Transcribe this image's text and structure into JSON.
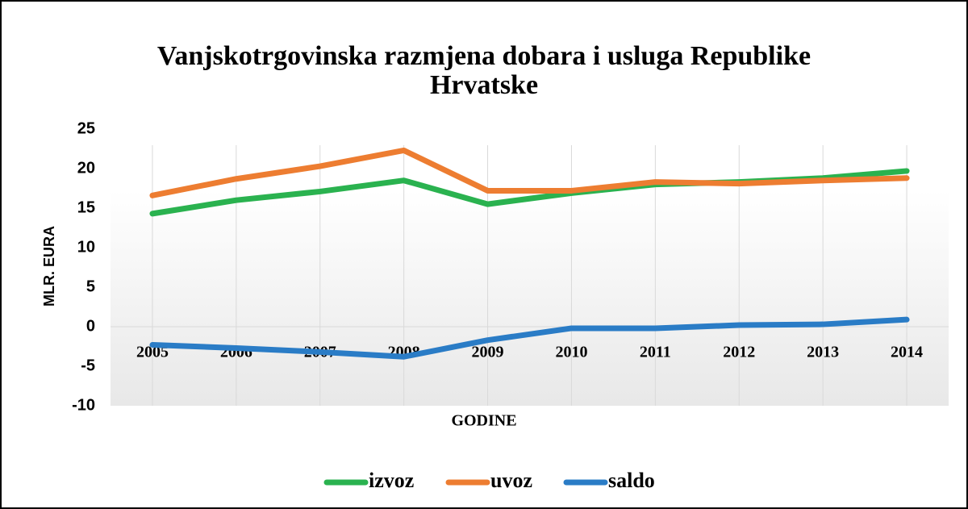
{
  "chart_data": {
    "type": "line",
    "title": [
      "Vanjskotrgovinska razmjena dobara i usluga Republike",
      "Hrvatske"
    ],
    "y_label": "MLR. EURA",
    "x_label": "GODINE",
    "categories": [
      "2005",
      "2006",
      "2007",
      "2008",
      "2009",
      "2010",
      "2011",
      "2012",
      "2013",
      "2014"
    ],
    "series": [
      {
        "name": "izvoz",
        "color": "#2ab24f",
        "values": [
          14.3,
          16,
          17.1,
          18.5,
          15.5,
          16.9,
          18,
          18.3,
          18.8,
          19.7
        ]
      },
      {
        "name": "uvoz",
        "color": "#ed7d31",
        "values": [
          16.6,
          18.7,
          20.3,
          22.3,
          17.2,
          17.2,
          18.3,
          18.1,
          18.5,
          18.8
        ]
      },
      {
        "name": "saldo",
        "color": "#2a7cc6",
        "values": [
          -2.3,
          -2.7,
          -3.2,
          -3.8,
          -1.7,
          -0.2,
          -0.2,
          0.2,
          0.3,
          0.9
        ]
      }
    ],
    "ylim": [
      -10,
      25
    ],
    "yticks": [
      -10,
      -5,
      0,
      5,
      10,
      15,
      20,
      25
    ],
    "grid": "x",
    "legend": "bottom"
  }
}
